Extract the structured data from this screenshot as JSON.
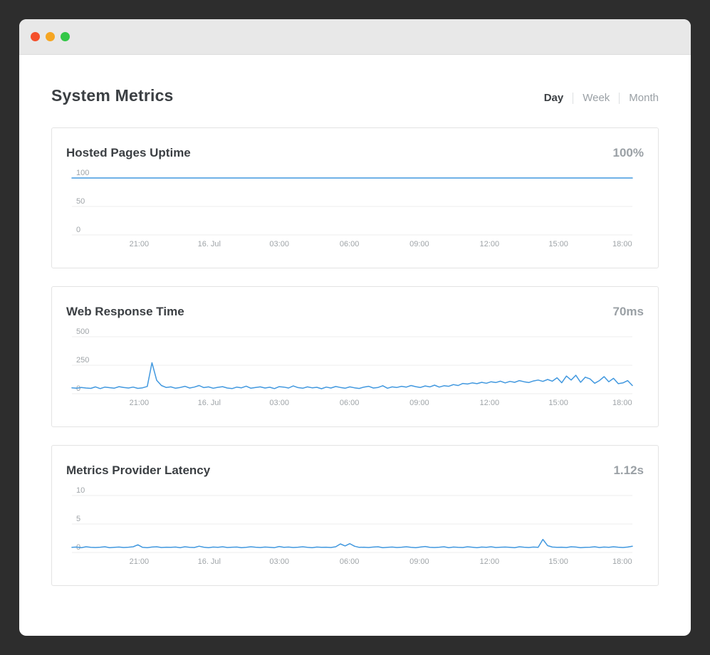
{
  "window": {
    "traffic_lights": {
      "close": "#f4502c",
      "minimize": "#f5a623",
      "zoom": "#33c747"
    }
  },
  "header": {
    "title": "System Metrics",
    "tabs": [
      {
        "label": "Day",
        "active": true
      },
      {
        "label": "Week",
        "active": false
      },
      {
        "label": "Month",
        "active": false
      }
    ]
  },
  "colors": {
    "line": "#4198df",
    "grid": "#ececec",
    "tick_label": "#9fa4a8"
  },
  "x_axis": {
    "labels": [
      "21:00",
      "16. Jul",
      "03:00",
      "06:00",
      "09:00",
      "12:00",
      "15:00",
      "18:00"
    ],
    "fractions": [
      0.12,
      0.245,
      0.37,
      0.495,
      0.62,
      0.745,
      0.868,
      0.982
    ]
  },
  "chart_data": [
    {
      "type": "line",
      "title": "Hosted Pages Uptime",
      "current_value": "100%",
      "ylabel": "",
      "ylim": [
        0,
        100
      ],
      "y_ticks": [
        0,
        50,
        100
      ],
      "values": [
        100,
        100,
        100,
        100,
        100,
        100,
        100,
        100,
        100,
        100,
        100,
        100,
        100,
        100,
        100,
        100,
        100,
        100,
        100,
        100,
        100,
        100,
        100,
        100
      ]
    },
    {
      "type": "line",
      "title": "Web Response Time",
      "current_value": "70ms",
      "ylabel": "",
      "ylim": [
        0,
        500
      ],
      "y_ticks": [
        0,
        250,
        500
      ],
      "values": [
        52,
        48,
        55,
        50,
        47,
        60,
        45,
        58,
        53,
        49,
        62,
        55,
        50,
        58,
        47,
        52,
        64,
        272,
        118,
        72,
        55,
        60,
        48,
        55,
        65,
        50,
        58,
        72,
        54,
        60,
        48,
        56,
        62,
        50,
        45,
        58,
        52,
        66,
        48,
        55,
        60,
        50,
        57,
        45,
        62,
        58,
        50,
        68,
        54,
        48,
        60,
        52,
        56,
        44,
        58,
        50,
        63,
        55,
        48,
        60,
        52,
        46,
        58,
        65,
        50,
        55,
        70,
        48,
        60,
        55,
        65,
        58,
        72,
        62,
        55,
        68,
        60,
        75,
        58,
        70,
        65,
        80,
        72,
        90,
        85,
        95,
        88,
        100,
        92,
        105,
        98,
        110,
        95,
        108,
        100,
        115,
        105,
        98,
        112,
        120,
        108,
        125,
        110,
        140,
        96,
        155,
        120,
        162,
        100,
        145,
        130,
        92,
        115,
        150,
        105,
        135,
        88,
        95,
        115,
        72
      ]
    },
    {
      "type": "line",
      "title": "Metrics Provider Latency",
      "current_value": "1.12s",
      "ylabel": "",
      "ylim": [
        0,
        10
      ],
      "y_ticks": [
        0,
        5,
        10
      ],
      "values": [
        0.9,
        0.95,
        0.85,
        1.0,
        0.9,
        0.88,
        0.92,
        1.0,
        0.85,
        0.9,
        0.95,
        0.88,
        0.92,
        1.0,
        1.35,
        0.9,
        0.85,
        0.95,
        1.0,
        0.88,
        0.92,
        0.9,
        0.95,
        0.85,
        1.0,
        0.9,
        0.88,
        1.1,
        0.92,
        0.85,
        0.95,
        0.9,
        1.0,
        0.88,
        0.92,
        0.95,
        0.85,
        0.9,
        1.0,
        0.92,
        0.88,
        0.95,
        0.9,
        0.85,
        1.05,
        0.9,
        0.95,
        0.88,
        0.92,
        1.0,
        0.9,
        0.85,
        0.95,
        0.9,
        0.92,
        0.88,
        1.0,
        1.5,
        1.15,
        1.55,
        1.1,
        0.9,
        0.92,
        0.88,
        0.95,
        1.0,
        0.85,
        0.9,
        0.95,
        0.88,
        0.92,
        1.0,
        0.9,
        0.85,
        0.95,
        1.05,
        0.9,
        0.88,
        0.92,
        1.0,
        0.85,
        0.95,
        0.9,
        0.88,
        1.0,
        0.92,
        0.85,
        0.95,
        0.9,
        1.0,
        0.88,
        0.92,
        0.95,
        0.9,
        0.85,
        1.0,
        0.92,
        0.88,
        0.95,
        0.9,
        2.3,
        1.2,
        0.95,
        0.9,
        0.92,
        0.88,
        1.0,
        0.95,
        0.85,
        0.9,
        0.92,
        1.0,
        0.88,
        0.95,
        0.9,
        1.0,
        0.92,
        0.88,
        0.95,
        1.1
      ]
    }
  ]
}
